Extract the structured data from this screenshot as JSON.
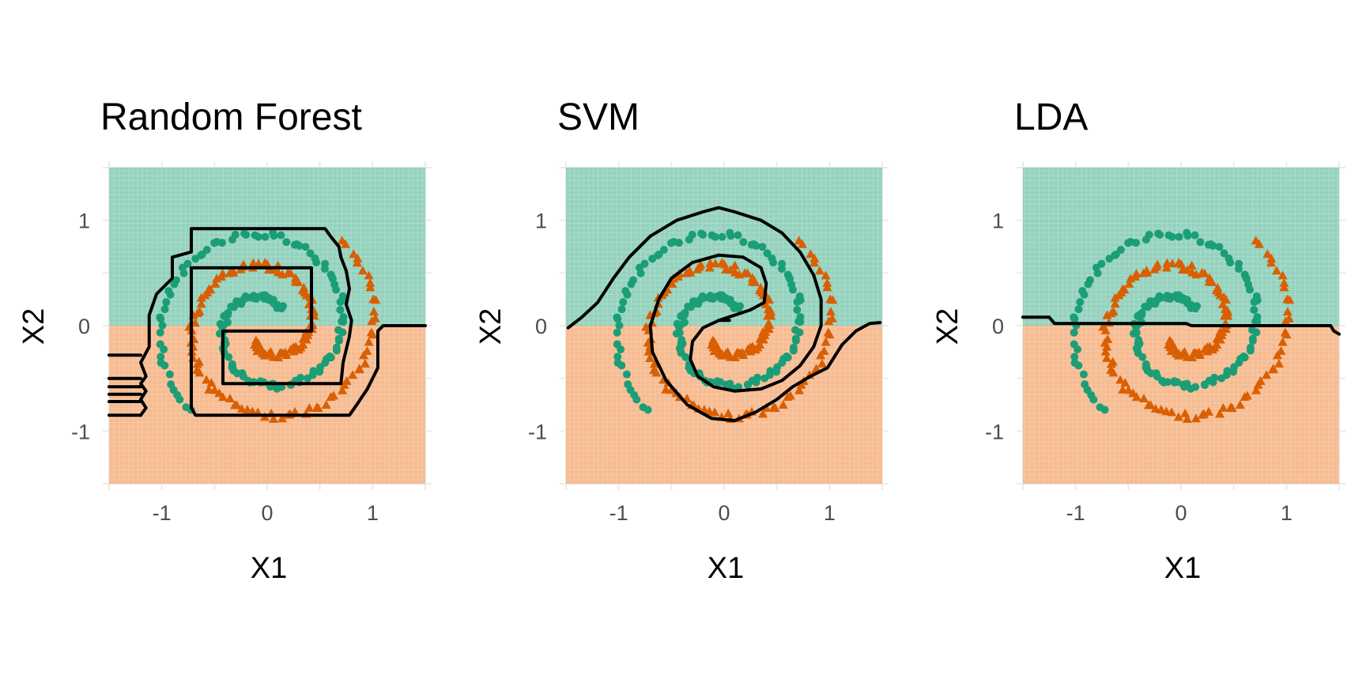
{
  "colors": {
    "class_a_region": "#8fd0bb",
    "class_b_region": "#f6b88c",
    "class_a_point": "#1b9e77",
    "class_b_point": "#d95f02",
    "boundary": "#000000",
    "grid": "#ebebeb"
  },
  "chart_data": [
    {
      "type": "scatter",
      "title": "Random Forest",
      "xlabel": "X1",
      "ylabel": "X2",
      "xlim": [
        -1.5,
        1.5
      ],
      "ylim": [
        -1.5,
        1.5
      ],
      "xticks": [
        -1,
        0,
        1
      ],
      "yticks": [
        -1,
        0,
        1
      ],
      "xtick_labels": [
        "-1",
        "0",
        "1"
      ],
      "ytick_labels": [
        "-1",
        "0",
        "1"
      ],
      "grid": true,
      "legend": "none",
      "region_split_y": 0,
      "boundary": [
        [
          [
            1.5,
            0
          ],
          [
            1.1,
            0
          ],
          [
            1.05,
            -0.05
          ],
          [
            1.05,
            -0.4
          ],
          [
            0.95,
            -0.6
          ],
          [
            0.85,
            -0.75
          ],
          [
            0.78,
            -0.85
          ],
          [
            -0.68,
            -0.85
          ],
          [
            -0.72,
            -0.78
          ],
          [
            -0.72,
            0.55
          ],
          [
            0.42,
            0.55
          ],
          [
            0.42,
            -0.05
          ],
          [
            -0.42,
            -0.05
          ],
          [
            -0.42,
            -0.55
          ],
          [
            0.7,
            -0.55
          ],
          [
            0.72,
            -0.35
          ],
          [
            0.78,
            -0.1
          ],
          [
            0.8,
            0.05
          ],
          [
            0.75,
            0.2
          ],
          [
            0.78,
            0.35
          ],
          [
            0.75,
            0.52
          ],
          [
            0.7,
            0.65
          ],
          [
            0.68,
            0.75
          ],
          [
            0.6,
            0.85
          ],
          [
            0.55,
            0.92
          ],
          [
            -0.72,
            0.92
          ],
          [
            -0.72,
            0.7
          ],
          [
            -0.9,
            0.65
          ],
          [
            -0.9,
            0.45
          ],
          [
            -1.05,
            0.3
          ],
          [
            -1.12,
            0.1
          ],
          [
            -1.12,
            -0.2
          ],
          [
            -1.2,
            -0.35
          ],
          [
            -1.15,
            -0.48
          ],
          [
            -1.2,
            -0.55
          ],
          [
            -1.15,
            -0.62
          ],
          [
            -1.2,
            -0.7
          ],
          [
            -1.15,
            -0.78
          ],
          [
            -1.2,
            -0.85
          ]
        ],
        [
          [
            -1.5,
            -0.28
          ],
          [
            -1.2,
            -0.28
          ]
        ],
        [
          [
            -1.5,
            -0.5
          ],
          [
            -1.2,
            -0.5
          ]
        ],
        [
          [
            -1.5,
            -0.58
          ],
          [
            -1.2,
            -0.58
          ]
        ],
        [
          [
            -1.5,
            -0.65
          ],
          [
            -1.2,
            -0.65
          ]
        ],
        [
          [
            -1.5,
            -0.72
          ],
          [
            -1.2,
            -0.72
          ]
        ],
        [
          [
            -1.5,
            -0.85
          ],
          [
            -1.2,
            -0.85
          ]
        ]
      ]
    },
    {
      "type": "scatter",
      "title": "SVM",
      "xlabel": "X1",
      "ylabel": "X2",
      "xlim": [
        -1.5,
        1.5
      ],
      "ylim": [
        -1.5,
        1.5
      ],
      "xticks": [
        -1,
        0,
        1
      ],
      "yticks": [
        -1,
        0,
        1
      ],
      "xtick_labels": [
        "-1",
        "0",
        "1"
      ],
      "ytick_labels": [
        "-1",
        "0",
        "1"
      ],
      "grid": true,
      "legend": "none",
      "region_split_y": 0,
      "boundary": [
        [
          [
            -1.48,
            -0.02
          ],
          [
            -1.35,
            0.08
          ],
          [
            -1.2,
            0.22
          ],
          [
            -1.05,
            0.45
          ],
          [
            -0.9,
            0.65
          ],
          [
            -0.7,
            0.85
          ],
          [
            -0.45,
            1.0
          ],
          [
            -0.2,
            1.08
          ],
          [
            -0.05,
            1.12
          ],
          [
            0.1,
            1.08
          ],
          [
            0.35,
            1.0
          ],
          [
            0.55,
            0.88
          ],
          [
            0.72,
            0.7
          ],
          [
            0.85,
            0.48
          ],
          [
            0.92,
            0.25
          ],
          [
            0.92,
            0.0
          ],
          [
            0.85,
            -0.2
          ],
          [
            0.72,
            -0.38
          ],
          [
            0.55,
            -0.52
          ],
          [
            0.35,
            -0.6
          ],
          [
            0.1,
            -0.62
          ],
          [
            -0.1,
            -0.58
          ],
          [
            -0.25,
            -0.48
          ],
          [
            -0.32,
            -0.32
          ],
          [
            -0.3,
            -0.15
          ],
          [
            -0.2,
            -0.02
          ],
          [
            -0.05,
            0.05
          ],
          [
            0.1,
            0.1
          ],
          [
            0.25,
            0.15
          ],
          [
            0.38,
            0.22
          ],
          [
            0.4,
            0.4
          ],
          [
            0.35,
            0.55
          ],
          [
            0.18,
            0.65
          ],
          [
            -0.05,
            0.67
          ],
          [
            -0.3,
            0.6
          ],
          [
            -0.5,
            0.45
          ],
          [
            -0.62,
            0.25
          ],
          [
            -0.7,
            0.0
          ],
          [
            -0.68,
            -0.25
          ],
          [
            -0.55,
            -0.52
          ],
          [
            -0.35,
            -0.75
          ],
          [
            -0.12,
            -0.88
          ],
          [
            0.1,
            -0.9
          ],
          [
            0.3,
            -0.82
          ],
          [
            0.5,
            -0.7
          ],
          [
            0.65,
            -0.58
          ],
          [
            0.82,
            -0.48
          ],
          [
            0.98,
            -0.4
          ],
          [
            1.12,
            -0.18
          ],
          [
            1.25,
            -0.05
          ],
          [
            1.38,
            0.02
          ],
          [
            1.48,
            0.03
          ]
        ],
        [
          [
            -0.05,
            0.05
          ],
          [
            0.05,
            0.05
          ]
        ]
      ]
    },
    {
      "type": "scatter",
      "title": "LDA",
      "xlabel": "X1",
      "ylabel": "X2",
      "xlim": [
        -1.5,
        1.5
      ],
      "ylim": [
        -1.5,
        1.5
      ],
      "xticks": [
        -1,
        0,
        1
      ],
      "yticks": [
        -1,
        0,
        1
      ],
      "xtick_labels": [
        "-1",
        "0",
        "1"
      ],
      "ytick_labels": [
        "-1",
        "0",
        "1"
      ],
      "grid": true,
      "legend": "none",
      "region_split_y": 0,
      "boundary": [
        [
          [
            -1.5,
            0.08
          ],
          [
            -1.25,
            0.08
          ],
          [
            -1.2,
            0.02
          ],
          [
            0.05,
            0.02
          ],
          [
            0.1,
            0.0
          ],
          [
            1.42,
            0.0
          ],
          [
            1.45,
            -0.05
          ],
          [
            1.5,
            -0.08
          ]
        ]
      ]
    }
  ]
}
